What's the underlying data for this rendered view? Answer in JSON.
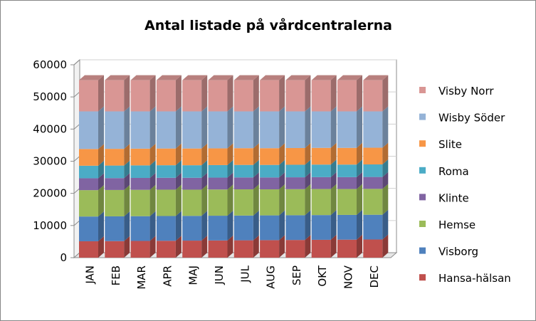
{
  "chart_data": {
    "type": "bar",
    "stacked": true,
    "style": "3d-stacked-column",
    "title": "Antal listade på vårdcentralerna",
    "xlabel": "",
    "ylabel": "",
    "ylim": [
      0,
      60000
    ],
    "yticks": [
      0,
      10000,
      20000,
      30000,
      40000,
      50000,
      60000
    ],
    "categories": [
      "JAN",
      "FEB",
      "MAR",
      "APR",
      "MAJ",
      "JUN",
      "JUL",
      "AUG",
      "SEP",
      "OKT",
      "NOV",
      "DEC"
    ],
    "legend_position": "right",
    "series": [
      {
        "name": "Hansa-hälsan",
        "color": "#C0504D",
        "values": [
          5100,
          5150,
          5200,
          5250,
          5300,
          5350,
          5400,
          5450,
          5500,
          5550,
          5600,
          5650
        ]
      },
      {
        "name": "Visborg",
        "color": "#4F81BD",
        "values": [
          7700,
          7700,
          7700,
          7700,
          7700,
          7700,
          7700,
          7700,
          7700,
          7700,
          7700,
          7700
        ]
      },
      {
        "name": "Hemse",
        "color": "#9BBB59",
        "values": [
          8200,
          8200,
          8200,
          8200,
          8150,
          8150,
          8150,
          8100,
          8100,
          8100,
          8050,
          8050
        ]
      },
      {
        "name": "Klinte",
        "color": "#8064A2",
        "values": [
          3700,
          3700,
          3700,
          3700,
          3700,
          3700,
          3700,
          3700,
          3700,
          3700,
          3700,
          3700
        ]
      },
      {
        "name": "Roma",
        "color": "#4BACC6",
        "values": [
          3900,
          3900,
          3900,
          3900,
          3900,
          3900,
          3900,
          3900,
          3900,
          3900,
          3900,
          3900
        ]
      },
      {
        "name": "Slite",
        "color": "#F79646",
        "values": [
          5200,
          5200,
          5200,
          5200,
          5200,
          5200,
          5200,
          5200,
          5200,
          5200,
          5200,
          5200
        ]
      },
      {
        "name": "Wisby Söder",
        "color": "#95B3D7",
        "values": [
          11700,
          11650,
          11600,
          11550,
          11550,
          11500,
          11450,
          11450,
          11400,
          11350,
          11350,
          11300
        ]
      },
      {
        "name": "Visby Norr",
        "color": "#D99694",
        "values": [
          9700,
          9700,
          9700,
          9700,
          9700,
          9700,
          9700,
          9700,
          9700,
          9700,
          9700,
          9700
        ]
      }
    ]
  }
}
